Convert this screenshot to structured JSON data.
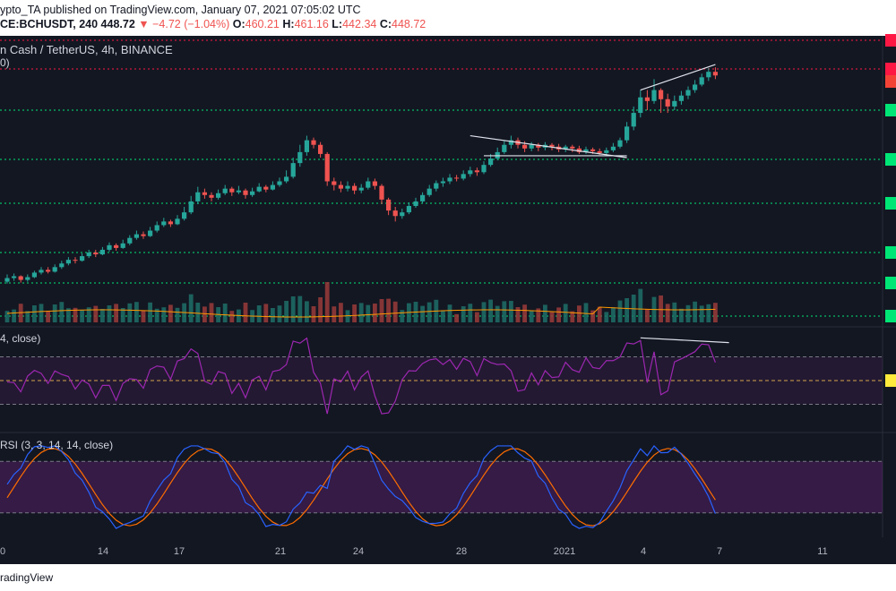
{
  "header": {
    "line1": "ypto_TA published on TradingView.com, January 07, 2021 07:05:02 UTC",
    "symbol": "CE:BCHUSDT, 240",
    "last": "448.72",
    "change": "▼ −4.72 (−1.04%)",
    "o_label": "O:",
    "o": "460.21",
    "h_label": "H:",
    "h": "461.16",
    "l_label": "L:",
    "l": "442.34",
    "c_label": "C:",
    "c": "448.72"
  },
  "title": "n Cash / TetherUS, 4h, BINANCE",
  "title2": "0)",
  "rsi_label": "4, close)",
  "stoch_label": "RSI (3, 3, 14, 14, close)",
  "footer": "radingView",
  "colors": {
    "bg": "#131722",
    "up": "#26a69a",
    "down": "#ef5350",
    "rsi": "#9c27b0",
    "stoch_k": "#2962ff",
    "stoch_d": "#ff6d00",
    "level": "#00e676",
    "resistance": "#ff1744"
  },
  "chart_data": {
    "type": "candlestick",
    "x_ticks": [
      "0",
      "14",
      "17",
      "21",
      "24",
      "28",
      "2021",
      "4",
      "7",
      "11"
    ],
    "levels": {
      "support": 7,
      "resistance": 2
    },
    "candles": [
      [
        0.2,
        0.24,
        0.28,
        0.18
      ],
      [
        0.24,
        0.26,
        0.29,
        0.21
      ],
      [
        0.26,
        0.22,
        0.27,
        0.19
      ],
      [
        0.22,
        0.25,
        0.28,
        0.2
      ],
      [
        0.25,
        0.3,
        0.32,
        0.24
      ],
      [
        0.3,
        0.33,
        0.36,
        0.28
      ],
      [
        0.33,
        0.31,
        0.36,
        0.29
      ],
      [
        0.31,
        0.36,
        0.39,
        0.3
      ],
      [
        0.36,
        0.4,
        0.43,
        0.34
      ],
      [
        0.4,
        0.44,
        0.47,
        0.38
      ],
      [
        0.44,
        0.43,
        0.47,
        0.4
      ],
      [
        0.43,
        0.48,
        0.51,
        0.42
      ],
      [
        0.48,
        0.52,
        0.55,
        0.46
      ],
      [
        0.52,
        0.5,
        0.55,
        0.47
      ],
      [
        0.5,
        0.55,
        0.58,
        0.49
      ],
      [
        0.55,
        0.6,
        0.63,
        0.53
      ],
      [
        0.6,
        0.57,
        0.62,
        0.54
      ],
      [
        0.57,
        0.62,
        0.66,
        0.56
      ],
      [
        0.62,
        0.68,
        0.71,
        0.6
      ],
      [
        0.68,
        0.72,
        0.76,
        0.66
      ],
      [
        0.72,
        0.7,
        0.75,
        0.67
      ],
      [
        0.7,
        0.76,
        0.8,
        0.69
      ],
      [
        0.76,
        0.82,
        0.86,
        0.74
      ],
      [
        0.82,
        0.86,
        0.9,
        0.8
      ],
      [
        0.86,
        0.83,
        0.88,
        0.8
      ],
      [
        0.83,
        0.89,
        0.93,
        0.82
      ],
      [
        0.89,
        0.96,
        1.02,
        0.87
      ],
      [
        0.96,
        1.08,
        1.14,
        0.94
      ],
      [
        1.08,
        1.18,
        1.24,
        1.05
      ],
      [
        1.18,
        1.15,
        1.22,
        1.11
      ],
      [
        1.15,
        1.12,
        1.18,
        1.08
      ],
      [
        1.12,
        1.17,
        1.21,
        1.1
      ],
      [
        1.17,
        1.22,
        1.26,
        1.15
      ],
      [
        1.22,
        1.18,
        1.24,
        1.14
      ],
      [
        1.18,
        1.2,
        1.25,
        1.16
      ],
      [
        1.2,
        1.15,
        1.22,
        1.11
      ],
      [
        1.15,
        1.19,
        1.23,
        1.13
      ],
      [
        1.19,
        1.24,
        1.28,
        1.18
      ],
      [
        1.24,
        1.21,
        1.26,
        1.18
      ],
      [
        1.21,
        1.26,
        1.3,
        1.2
      ],
      [
        1.26,
        1.3,
        1.34,
        1.24
      ],
      [
        1.3,
        1.35,
        1.42,
        1.28
      ],
      [
        1.35,
        1.5,
        1.56,
        1.33
      ],
      [
        1.5,
        1.62,
        1.7,
        1.46
      ],
      [
        1.62,
        1.75,
        1.8,
        1.58
      ],
      [
        1.75,
        1.7,
        1.78,
        1.66
      ],
      [
        1.7,
        1.6,
        1.73,
        1.56
      ],
      [
        1.6,
        1.3,
        1.62,
        1.25
      ],
      [
        1.3,
        1.26,
        1.34,
        1.2
      ],
      [
        1.26,
        1.22,
        1.3,
        1.18
      ],
      [
        1.22,
        1.25,
        1.3,
        1.19
      ],
      [
        1.25,
        1.2,
        1.28,
        1.16
      ],
      [
        1.2,
        1.23,
        1.27,
        1.17
      ],
      [
        1.23,
        1.3,
        1.34,
        1.21
      ],
      [
        1.3,
        1.25,
        1.33,
        1.21
      ],
      [
        1.25,
        1.1,
        1.27,
        1.05
      ],
      [
        1.1,
        0.98,
        1.12,
        0.93
      ],
      [
        0.98,
        0.92,
        1.02,
        0.86
      ],
      [
        0.92,
        0.96,
        1.0,
        0.89
      ],
      [
        0.96,
        1.03,
        1.07,
        0.94
      ],
      [
        1.03,
        1.08,
        1.12,
        1.01
      ],
      [
        1.08,
        1.15,
        1.18,
        1.06
      ],
      [
        1.15,
        1.22,
        1.26,
        1.13
      ],
      [
        1.22,
        1.28,
        1.31,
        1.19
      ],
      [
        1.28,
        1.3,
        1.34,
        1.24
      ],
      [
        1.3,
        1.34,
        1.38,
        1.27
      ],
      [
        1.34,
        1.33,
        1.37,
        1.3
      ],
      [
        1.33,
        1.38,
        1.42,
        1.31
      ],
      [
        1.38,
        1.42,
        1.46,
        1.35
      ],
      [
        1.42,
        1.4,
        1.45,
        1.36
      ],
      [
        1.4,
        1.48,
        1.52,
        1.38
      ],
      [
        1.48,
        1.55,
        1.6,
        1.46
      ],
      [
        1.55,
        1.62,
        1.67,
        1.53
      ],
      [
        1.62,
        1.7,
        1.75,
        1.6
      ],
      [
        1.7,
        1.75,
        1.8,
        1.66
      ],
      [
        1.75,
        1.7,
        1.78,
        1.66
      ],
      [
        1.7,
        1.66,
        1.74,
        1.62
      ],
      [
        1.66,
        1.7,
        1.73,
        1.63
      ],
      [
        1.7,
        1.67,
        1.72,
        1.63
      ],
      [
        1.67,
        1.7,
        1.73,
        1.64
      ],
      [
        1.7,
        1.68,
        1.72,
        1.64
      ],
      [
        1.68,
        1.65,
        1.71,
        1.62
      ],
      [
        1.65,
        1.68,
        1.7,
        1.62
      ],
      [
        1.68,
        1.66,
        1.7,
        1.62
      ],
      [
        1.66,
        1.62,
        1.69,
        1.6
      ],
      [
        1.62,
        1.65,
        1.68,
        1.6
      ],
      [
        1.65,
        1.63,
        1.67,
        1.6
      ],
      [
        1.63,
        1.61,
        1.66,
        1.59
      ],
      [
        1.61,
        1.64,
        1.67,
        1.59
      ],
      [
        1.64,
        1.68,
        1.72,
        1.62
      ],
      [
        1.68,
        1.75,
        1.78,
        1.66
      ],
      [
        1.75,
        1.9,
        1.95,
        1.72
      ],
      [
        1.9,
        2.05,
        2.12,
        1.86
      ],
      [
        2.05,
        2.22,
        2.3,
        2.0
      ],
      [
        2.22,
        2.18,
        2.3,
        2.08
      ],
      [
        2.18,
        2.3,
        2.42,
        2.15
      ],
      [
        2.3,
        2.2,
        2.32,
        2.05
      ],
      [
        2.2,
        2.12,
        2.26,
        2.05
      ],
      [
        2.12,
        2.18,
        2.24,
        2.08
      ],
      [
        2.18,
        2.24,
        2.29,
        2.14
      ],
      [
        2.24,
        2.3,
        2.34,
        2.2
      ],
      [
        2.3,
        2.36,
        2.41,
        2.27
      ],
      [
        2.36,
        2.44,
        2.48,
        2.34
      ],
      [
        2.44,
        2.5,
        2.54,
        2.4
      ],
      [
        2.5,
        2.46,
        2.55,
        2.42
      ]
    ],
    "rsi_levels": [
      70,
      50,
      30
    ],
    "stoch_levels": [
      80,
      20
    ]
  }
}
